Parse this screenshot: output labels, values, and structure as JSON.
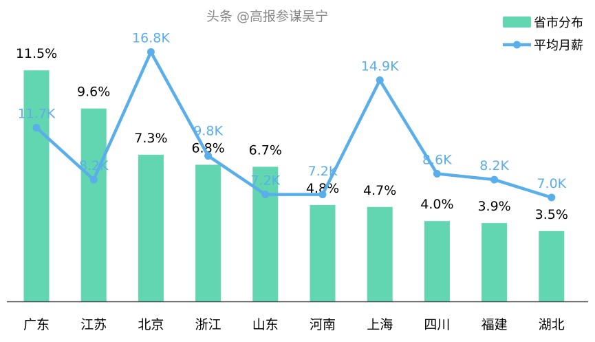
{
  "chart_data": {
    "type": "bar+line",
    "categories": [
      "广东",
      "江苏",
      "北京",
      "浙江",
      "山东",
      "河南",
      "上海",
      "四川",
      "福建",
      "湖北"
    ],
    "series": [
      {
        "name": "省市分布",
        "type": "bar",
        "values": [
          11.5,
          9.6,
          7.3,
          6.8,
          6.7,
          4.8,
          4.7,
          4.0,
          3.9,
          3.5
        ],
        "labels": [
          "11.5%",
          "9.6%",
          "7.3%",
          "6.8%",
          "6.7%",
          "4.8%",
          "4.7%",
          "4.0%",
          "3.9%",
          "3.5%"
        ],
        "color": "#62d6b0"
      },
      {
        "name": "平均月薪",
        "type": "line",
        "values": [
          11.7,
          8.2,
          16.8,
          9.8,
          7.2,
          7.2,
          14.9,
          8.6,
          8.2,
          7.0
        ],
        "labels": [
          "11.7K",
          "8.2K",
          "16.8K",
          "9.8K",
          "7.2K",
          "7.2K",
          "14.9K",
          "8.6K",
          "8.2K",
          "7.0K"
        ],
        "color": "#5aaeea"
      }
    ],
    "legend": "top-right",
    "grid": false,
    "bar_ylim": [
      0,
      15
    ],
    "line_ylim": [
      0,
      20.3
    ]
  },
  "watermark": "头条 @高报参谋吴宁"
}
